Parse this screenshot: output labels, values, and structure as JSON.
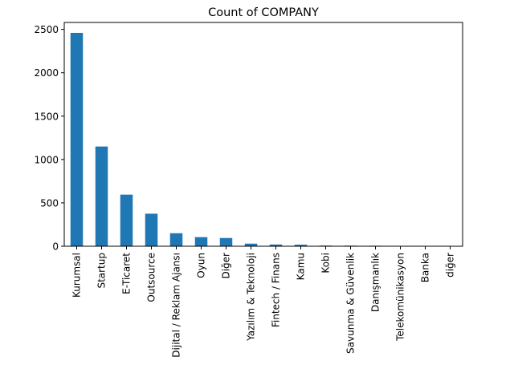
{
  "chart_data": {
    "type": "bar",
    "title": "Count of COMPANY",
    "xlabel": "",
    "ylabel": "",
    "ylim": [
      0,
      2580
    ],
    "yticks": [
      0,
      500,
      1000,
      1500,
      2000,
      2500
    ],
    "grid": false,
    "bar_color": "#1f77b4",
    "categories": [
      "Kurumsal",
      "Startup",
      "E-Ticaret",
      "Outsource",
      "Dijital / Reklam Ajansı",
      "Oyun",
      "Diğer",
      "Yazılım & Teknoloji",
      "Fintech / Finans",
      "Kamu",
      "Kobi",
      "Savunma & Güvenlik",
      "Danışmanlık",
      "Telekomünikasyon",
      "Banka",
      "diğer"
    ],
    "values": [
      2460,
      1150,
      595,
      375,
      150,
      105,
      95,
      30,
      20,
      18,
      8,
      7,
      6,
      2,
      1,
      1
    ]
  }
}
